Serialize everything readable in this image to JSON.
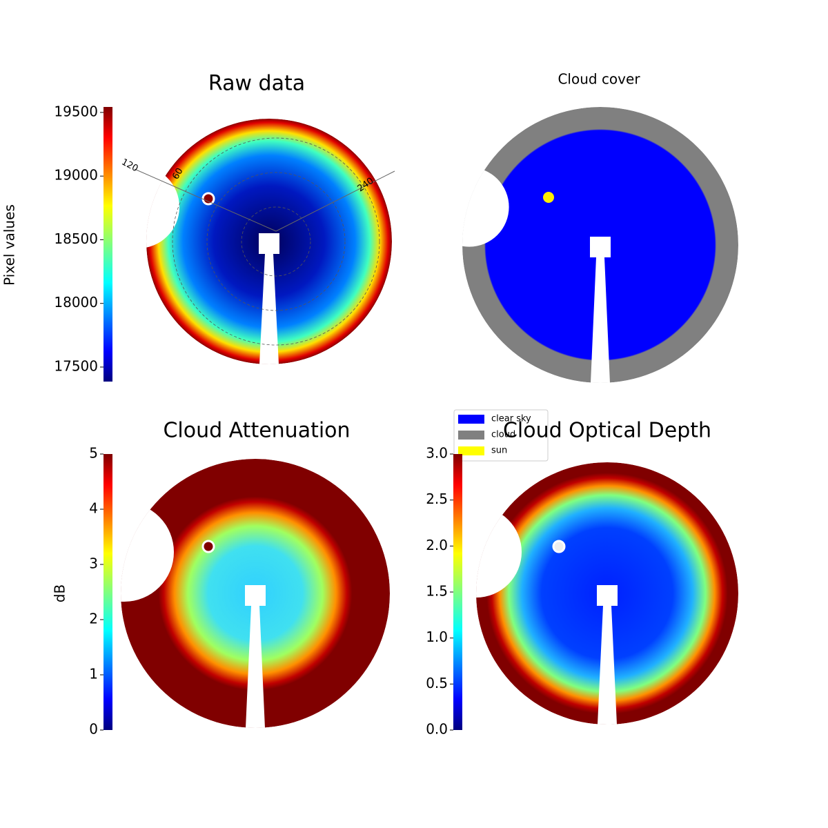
{
  "chart_data": [
    {
      "type": "image",
      "title": "Raw data",
      "colormap": "jet",
      "ylabel": "Pixel values",
      "ylim": [
        17386,
        19543
      ],
      "yticks": [
        17500,
        18000,
        18500,
        19000,
        19500
      ],
      "annotations": [
        "120",
        "60",
        "240"
      ]
    },
    {
      "type": "image",
      "title": "Cloud cover",
      "series": [
        {
          "name": "clear sky",
          "color": "#0000ff"
        },
        {
          "name": "cloud",
          "color": "#808080"
        },
        {
          "name": "sun",
          "color": "#ffff00"
        }
      ]
    },
    {
      "type": "image",
      "title": "Cloud Attenuation",
      "colormap": "jet",
      "ylabel": "dB",
      "ylim": [
        0,
        5
      ],
      "yticks": [
        0,
        1,
        2,
        3,
        4,
        5
      ]
    },
    {
      "type": "image",
      "title": "Cloud Optical Depth",
      "colormap": "jet",
      "ylim": [
        0,
        3
      ],
      "yticks": [
        {
          "value": 0,
          "label": "0.0"
        },
        0.5,
        {
          "value": 1,
          "label": "1.0"
        },
        1.5,
        {
          "value": 2,
          "label": "2.0"
        },
        2.5,
        {
          "value": 3,
          "label": "3.0"
        }
      ]
    }
  ]
}
